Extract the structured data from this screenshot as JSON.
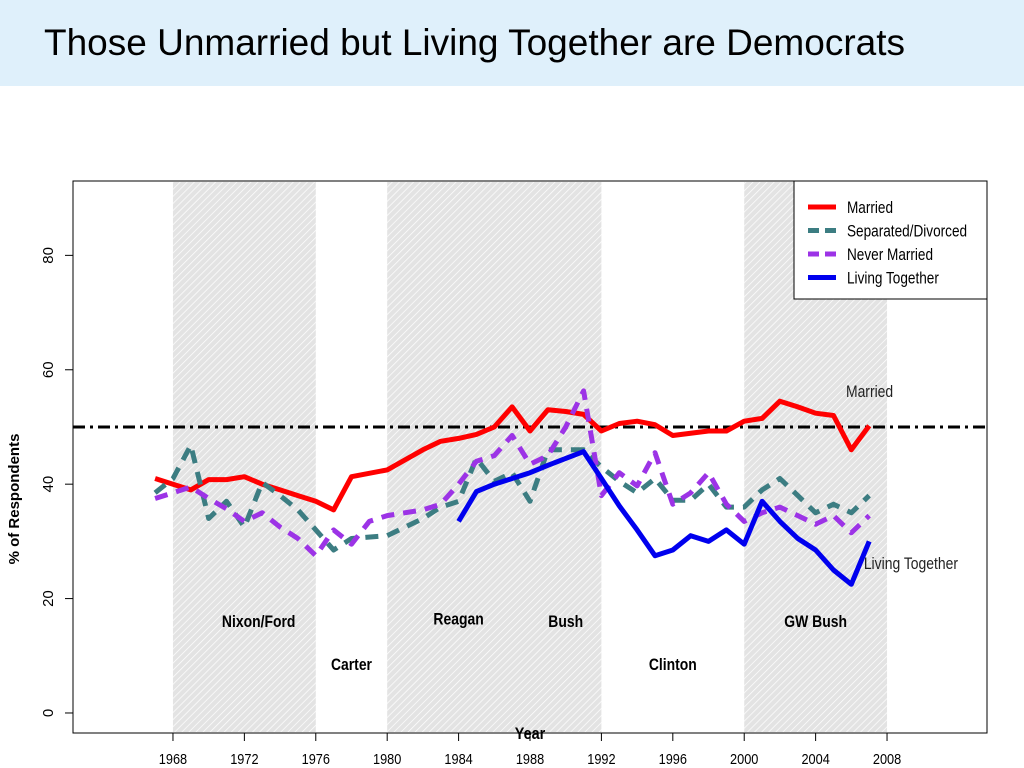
{
  "page": {
    "title": "Those Unmarried but Living Together are Democrats"
  },
  "chart_data": {
    "type": "line",
    "title": "",
    "xlabel": "Year",
    "ylabel": "% of Respondents",
    "xlim": [
      1962.4,
      2013.6
    ],
    "ylim": [
      -3.5,
      93
    ],
    "x_ticks": [
      1968,
      1972,
      1976,
      1980,
      1984,
      1988,
      1992,
      1996,
      2000,
      2004,
      2008
    ],
    "y_ticks": [
      0,
      20,
      40,
      60,
      80
    ],
    "grid": false,
    "legend_position": "top-right",
    "reference_line": {
      "y": 50,
      "style": "dash-dot",
      "color": "#000000"
    },
    "shaded_periods": [
      {
        "label": "Nixon/Ford",
        "start": 1968,
        "end": 1976
      },
      {
        "label": "Reagan",
        "start": 1980,
        "end": 1988
      },
      {
        "label": "Bush",
        "start": 1988,
        "end": 1992
      },
      {
        "label": "GW Bush",
        "start": 2000,
        "end": 2008
      }
    ],
    "period_labels": [
      {
        "text": "Nixon/Ford",
        "x": 1972.8,
        "y": 15
      },
      {
        "text": "Carter",
        "x": 1978,
        "y": 7.5
      },
      {
        "text": "Reagan",
        "x": 1984,
        "y": 15.5
      },
      {
        "text": "Bush",
        "x": 1990,
        "y": 15
      },
      {
        "text": "Clinton",
        "x": 1996,
        "y": 7.5
      },
      {
        "text": "GW Bush",
        "x": 2004,
        "y": 15
      }
    ],
    "annotations": [
      {
        "text": "Married",
        "x": 2005.7,
        "y": 55.2
      },
      {
        "text": "Living Together",
        "x": 2006.7,
        "y": 25.2
      }
    ],
    "series": [
      {
        "name": "Married",
        "color": "#ff0000",
        "style": "solid",
        "x": [
          1967,
          1968,
          1969,
          1970,
          1971,
          1972,
          1973,
          1974,
          1975,
          1976,
          1977,
          1978,
          1980,
          1982,
          1983,
          1984,
          1985,
          1986,
          1987,
          1988,
          1989,
          1990,
          1991,
          1992,
          1993,
          1994,
          1995,
          1996,
          1998,
          1999,
          2000,
          2001,
          2002,
          2003,
          2004,
          2005,
          2006,
          2007
        ],
        "values": [
          41,
          40,
          39,
          40.8,
          40.8,
          41.3,
          40,
          39,
          38,
          37,
          35.5,
          41.3,
          42.5,
          46,
          47.5,
          48,
          48.7,
          50,
          53.5,
          49.3,
          53,
          52.7,
          52.2,
          49.3,
          50.6,
          51,
          50.4,
          48.5,
          49.3,
          49.3,
          51,
          51.5,
          54.5,
          53.5,
          52.4,
          52,
          46,
          50.2
        ]
      },
      {
        "name": "Separated/Divorced",
        "color": "#3c7d82",
        "style": "dashed",
        "x": [
          1967,
          1968,
          1969,
          1970,
          1971,
          1972,
          1973,
          1974,
          1975,
          1976,
          1977,
          1978,
          1980,
          1982,
          1983,
          1984,
          1985,
          1986,
          1987,
          1988,
          1989,
          1990,
          1991,
          1992,
          1993,
          1994,
          1995,
          1996,
          1997,
          1998,
          1999,
          2000,
          2001,
          2002,
          2003,
          2004,
          2005,
          2006,
          2007
        ],
        "values": [
          38.5,
          41,
          46.8,
          34,
          37,
          32.5,
          40.3,
          38,
          35.5,
          32,
          28.5,
          30.5,
          31,
          34,
          36,
          37,
          44.5,
          40.5,
          42,
          37,
          46,
          46,
          46,
          43,
          40.5,
          38.5,
          41,
          37.2,
          37.2,
          40,
          36,
          36,
          39,
          41,
          38,
          35,
          36.5,
          35,
          38
        ]
      },
      {
        "name": "Never Married",
        "color": "#9c33e6",
        "style": "dashed",
        "x": [
          1967,
          1968,
          1969,
          1970,
          1971,
          1972,
          1973,
          1974,
          1975,
          1976,
          1977,
          1978,
          1979,
          1980,
          1982,
          1983,
          1984,
          1985,
          1986,
          1987,
          1988,
          1989,
          1990,
          1991,
          1992,
          1993,
          1994,
          1995,
          1996,
          1997,
          1998,
          1999,
          2000,
          2001,
          2002,
          2003,
          2004,
          2005,
          2006,
          2007
        ],
        "values": [
          37.5,
          38.5,
          39.5,
          37.5,
          35.7,
          33.5,
          35,
          32.5,
          30.5,
          27.5,
          32,
          29.5,
          33.5,
          34.5,
          35.5,
          36.5,
          40,
          44,
          45,
          48.5,
          43.5,
          45,
          50,
          56.3,
          38,
          42,
          39.7,
          45.5,
          36.5,
          38.5,
          42,
          36.5,
          33.5,
          35,
          36,
          34.5,
          33,
          34.5,
          31.5,
          34.5
        ]
      },
      {
        "name": "Living Together",
        "color": "#0000ee",
        "style": "solid",
        "x": [
          1984,
          1985,
          1986,
          1987,
          1988,
          1989,
          1990,
          1991,
          1992,
          1993,
          1994,
          1995,
          1996,
          1997,
          1998,
          1999,
          2000,
          2001,
          2002,
          2003,
          2004,
          2005,
          2006,
          2007
        ],
        "values": [
          33.5,
          38.7,
          40,
          41,
          42,
          43.3,
          44.5,
          45.7,
          41,
          36.2,
          32,
          27.5,
          28.5,
          31,
          30,
          32,
          29.5,
          37,
          33.5,
          30.5,
          28.5,
          25,
          22.5,
          30
        ]
      }
    ]
  }
}
